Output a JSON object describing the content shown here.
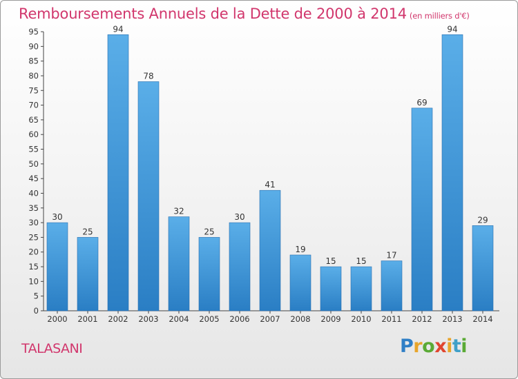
{
  "title": "Remboursements Annuels de la Dette de 2000 à 2014",
  "unit_note": "(en milliers d'€)",
  "place_name": "TALASANI",
  "logo": {
    "letters": [
      "P",
      "r",
      "o",
      "x",
      "i",
      "t",
      "i"
    ],
    "colors": [
      "#2f7fc6",
      "#e8a52b",
      "#5aaa35",
      "#e0452f",
      "#e8a52b",
      "#3fa0c8",
      "#5aaa35"
    ]
  },
  "colors": {
    "title": "#d1366c",
    "bar_light": "#5aaee8",
    "bar_dark": "#2a7ec4"
  },
  "chart_data": {
    "type": "bar",
    "categories": [
      "2000",
      "2001",
      "2002",
      "2003",
      "2004",
      "2005",
      "2006",
      "2007",
      "2008",
      "2009",
      "2010",
      "2011",
      "2012",
      "2013",
      "2014"
    ],
    "values": [
      30,
      25,
      94,
      78,
      32,
      25,
      30,
      41,
      19,
      15,
      15,
      17,
      69,
      94,
      29
    ],
    "ylim": [
      0,
      95
    ],
    "yticks": [
      0,
      5,
      10,
      15,
      20,
      25,
      30,
      35,
      40,
      45,
      50,
      55,
      60,
      65,
      70,
      75,
      80,
      85,
      90,
      95
    ],
    "grid": false
  }
}
